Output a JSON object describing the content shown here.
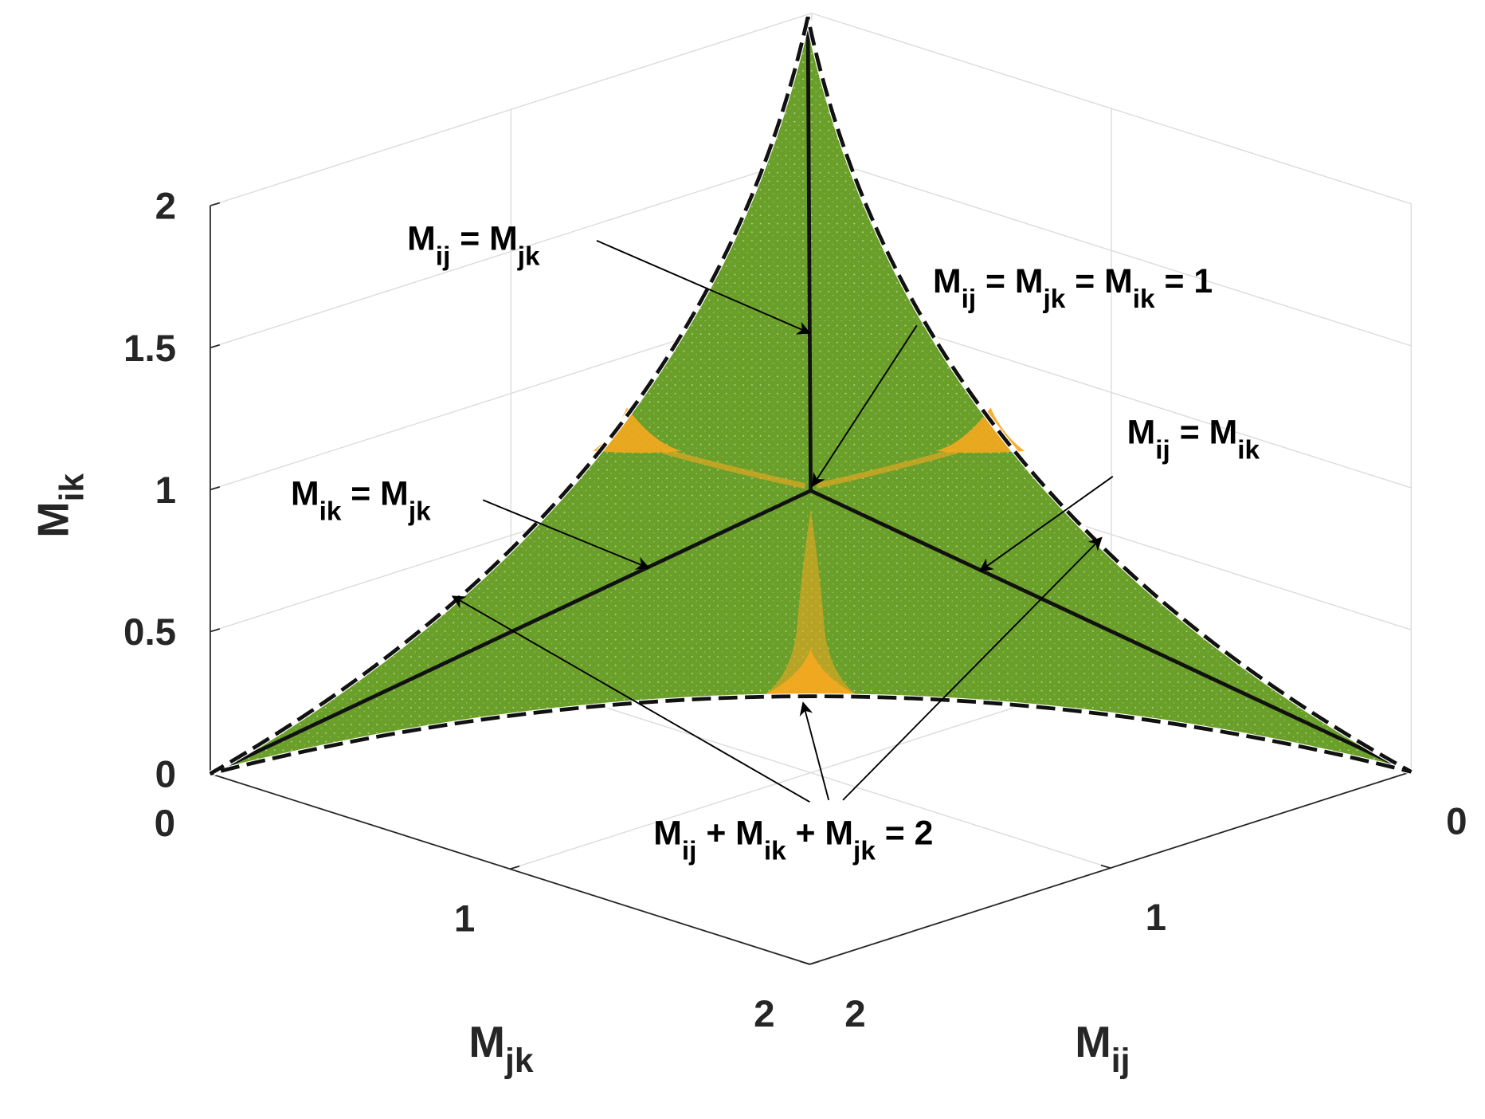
{
  "chart_data": {
    "type": "surface3d",
    "xlabel": [
      "M",
      "ij"
    ],
    "ylabel": [
      "M",
      "jk"
    ],
    "zlabel": [
      "M",
      "ik"
    ],
    "xlim": [
      0,
      2
    ],
    "xticks": [
      0,
      1,
      2
    ],
    "ylim": [
      0,
      2
    ],
    "yticks": [
      0,
      1,
      2
    ],
    "zlim": [
      0,
      2
    ],
    "zticks": [
      0,
      0.5,
      1,
      1.5,
      2
    ],
    "grid": true,
    "surface_color": "#6a9f2a",
    "highlight_color": "#f5a81f",
    "annotations": [
      {
        "parts": [
          "M",
          "ij",
          " = M",
          "jk"
        ]
      },
      {
        "parts": [
          "M",
          "ij",
          " = M",
          "jk",
          " = M",
          "ik",
          " = 1"
        ]
      },
      {
        "parts": [
          "M",
          "ij",
          " = M",
          "ik"
        ]
      },
      {
        "parts": [
          "M",
          "ik",
          " = M",
          "jk"
        ]
      },
      {
        "parts": [
          "M",
          "ij",
          " + M",
          "ik",
          " + M",
          "jk",
          " = 2"
        ]
      }
    ]
  }
}
